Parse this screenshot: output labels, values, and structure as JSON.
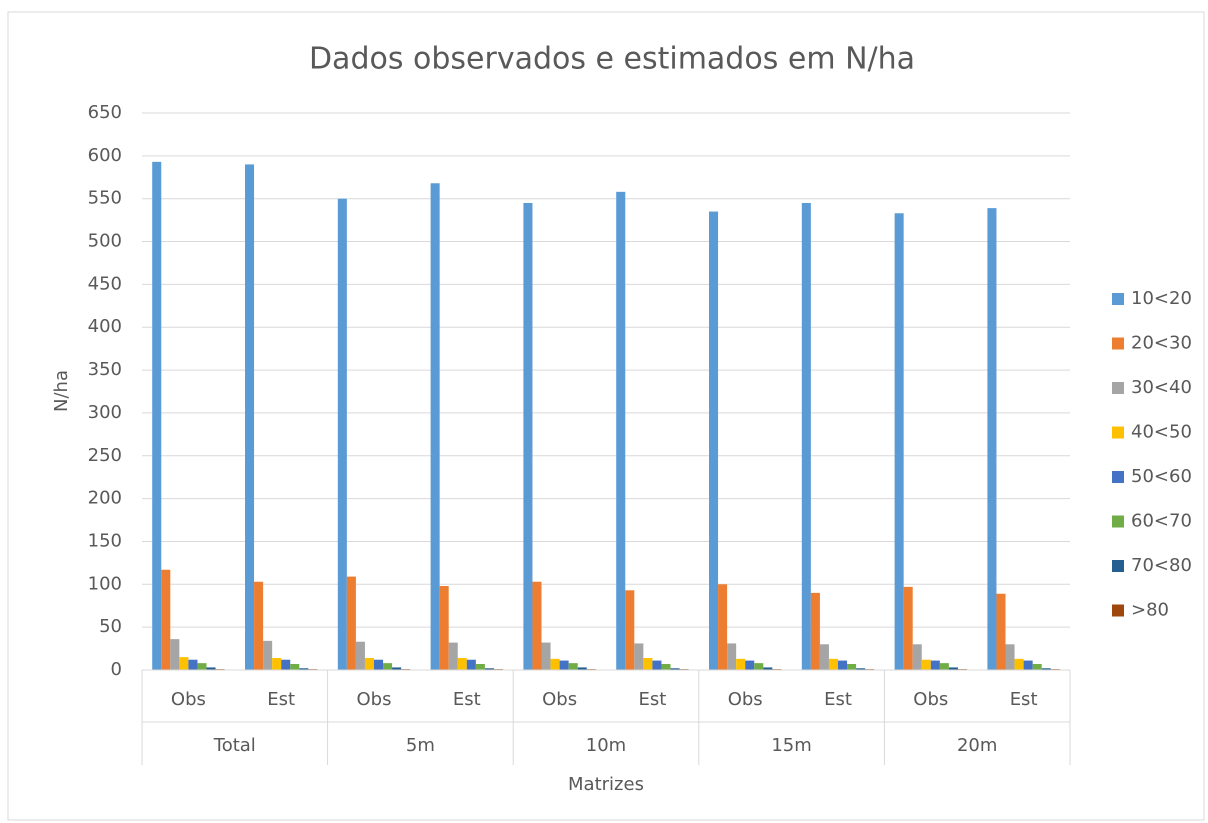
{
  "chart_data": {
    "type": "bar",
    "title": "Dados observados e estimados em N/ha",
    "x_label": "Matrizes",
    "y_label": "N/ha",
    "categories": [
      "Obs",
      "Est",
      "Obs",
      "Est",
      "Obs",
      "Est",
      "Obs",
      "Est",
      "Obs",
      "Est"
    ],
    "category_groups": [
      "Total",
      "5m",
      "10m",
      "15m",
      "20m"
    ],
    "series": [
      {
        "name": "10<20",
        "color": "#5b9bd5",
        "values": [
          593,
          590,
          550,
          568,
          545,
          558,
          535,
          545,
          533,
          539
        ]
      },
      {
        "name": "20<30",
        "color": "#ed7d31",
        "values": [
          117,
          103,
          109,
          98,
          103,
          93,
          100,
          90,
          97,
          89
        ]
      },
      {
        "name": "30<40",
        "color": "#a5a5a5",
        "values": [
          36,
          34,
          33,
          32,
          32,
          31,
          31,
          30,
          30,
          30
        ]
      },
      {
        "name": "40<50",
        "color": "#ffc000",
        "values": [
          15,
          14,
          14,
          14,
          13,
          14,
          13,
          13,
          12,
          13
        ]
      },
      {
        "name": "50<60",
        "color": "#4472c4",
        "values": [
          12,
          12,
          12,
          12,
          11,
          11,
          11,
          11,
          11,
          11
        ]
      },
      {
        "name": "60<70",
        "color": "#70ad47",
        "values": [
          8,
          7,
          8,
          7,
          8,
          7,
          8,
          7,
          8,
          7
        ]
      },
      {
        "name": "70<80",
        "color": "#255e91",
        "values": [
          3,
          2,
          3,
          2,
          3,
          2,
          3,
          2,
          3,
          2
        ]
      },
      {
        "name": ">80",
        "color": "#9e480e",
        "values": [
          1,
          1,
          1,
          1,
          1,
          1,
          1,
          1,
          1,
          1
        ]
      }
    ],
    "ylim": [
      0,
      650
    ],
    "yticks": [
      0,
      50,
      100,
      150,
      200,
      250,
      300,
      350,
      400,
      450,
      500,
      550,
      600,
      650
    ],
    "grid": true,
    "legend": "right"
  }
}
